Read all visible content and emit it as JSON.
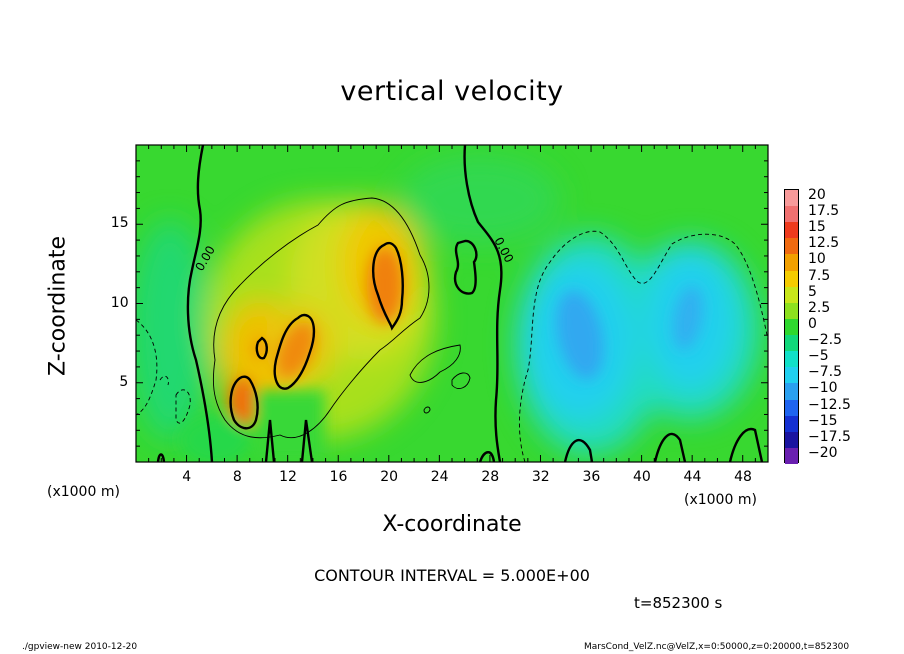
{
  "chart_data": {
    "type": "heatmap",
    "title": "vertical velocity",
    "xlabel": "X-coordinate",
    "ylabel": "Z-coordinate",
    "x_unit_label": "(x1000 m)",
    "y_unit_label": "(x1000 m)",
    "xlim": [
      0,
      50
    ],
    "ylim": [
      0,
      20
    ],
    "xticks": [
      "4",
      "8",
      "12",
      "16",
      "20",
      "24",
      "28",
      "32",
      "36",
      "40",
      "44",
      "48"
    ],
    "yticks": [
      "5",
      "10",
      "15"
    ],
    "contour_label": "0.00",
    "contour_interval_text": "CONTOUR INTERVAL = 5.000E+00",
    "time_text": "t=852300 s",
    "colorbar": {
      "levels": [
        "20",
        "17.5",
        "15",
        "12.5",
        "10",
        "7.5",
        "5",
        "2.5",
        "0",
        "-2.5",
        "-5",
        "-7.5",
        "-10",
        "-12.5",
        "-15",
        "-17.5",
        "-20"
      ],
      "colors": [
        "#f79a9a",
        "#f07070",
        "#ee3b1e",
        "#f06a10",
        "#f2a000",
        "#f5cc00",
        "#c8e61a",
        "#8de01e",
        "#2ed82e",
        "#10d87a",
        "#10e0c8",
        "#20d0f0",
        "#2aa0f0",
        "#1e64f0",
        "#1430d2",
        "#1a14a0",
        "#6a20b0"
      ]
    },
    "features": [
      {
        "name": "updraft-cell-1",
        "x": 8.5,
        "z": 3.8,
        "w": 11
      },
      {
        "name": "updraft-cell-2",
        "x": 12.5,
        "z": 6.8,
        "w": 12
      },
      {
        "name": "updraft-cell-3",
        "x": 19.5,
        "z": 11.8,
        "w": 12
      },
      {
        "name": "downdraft-region-1",
        "x": 35,
        "z": 8,
        "w": -7
      },
      {
        "name": "downdraft-region-2",
        "x": 43.5,
        "z": 8.5,
        "w": -6
      }
    ]
  },
  "footer": {
    "left": "./gpview-new   2010-12-20",
    "right": "MarsCond_VelZ.nc@VelZ,x=0:50000,z=0:20000,t=852300"
  }
}
